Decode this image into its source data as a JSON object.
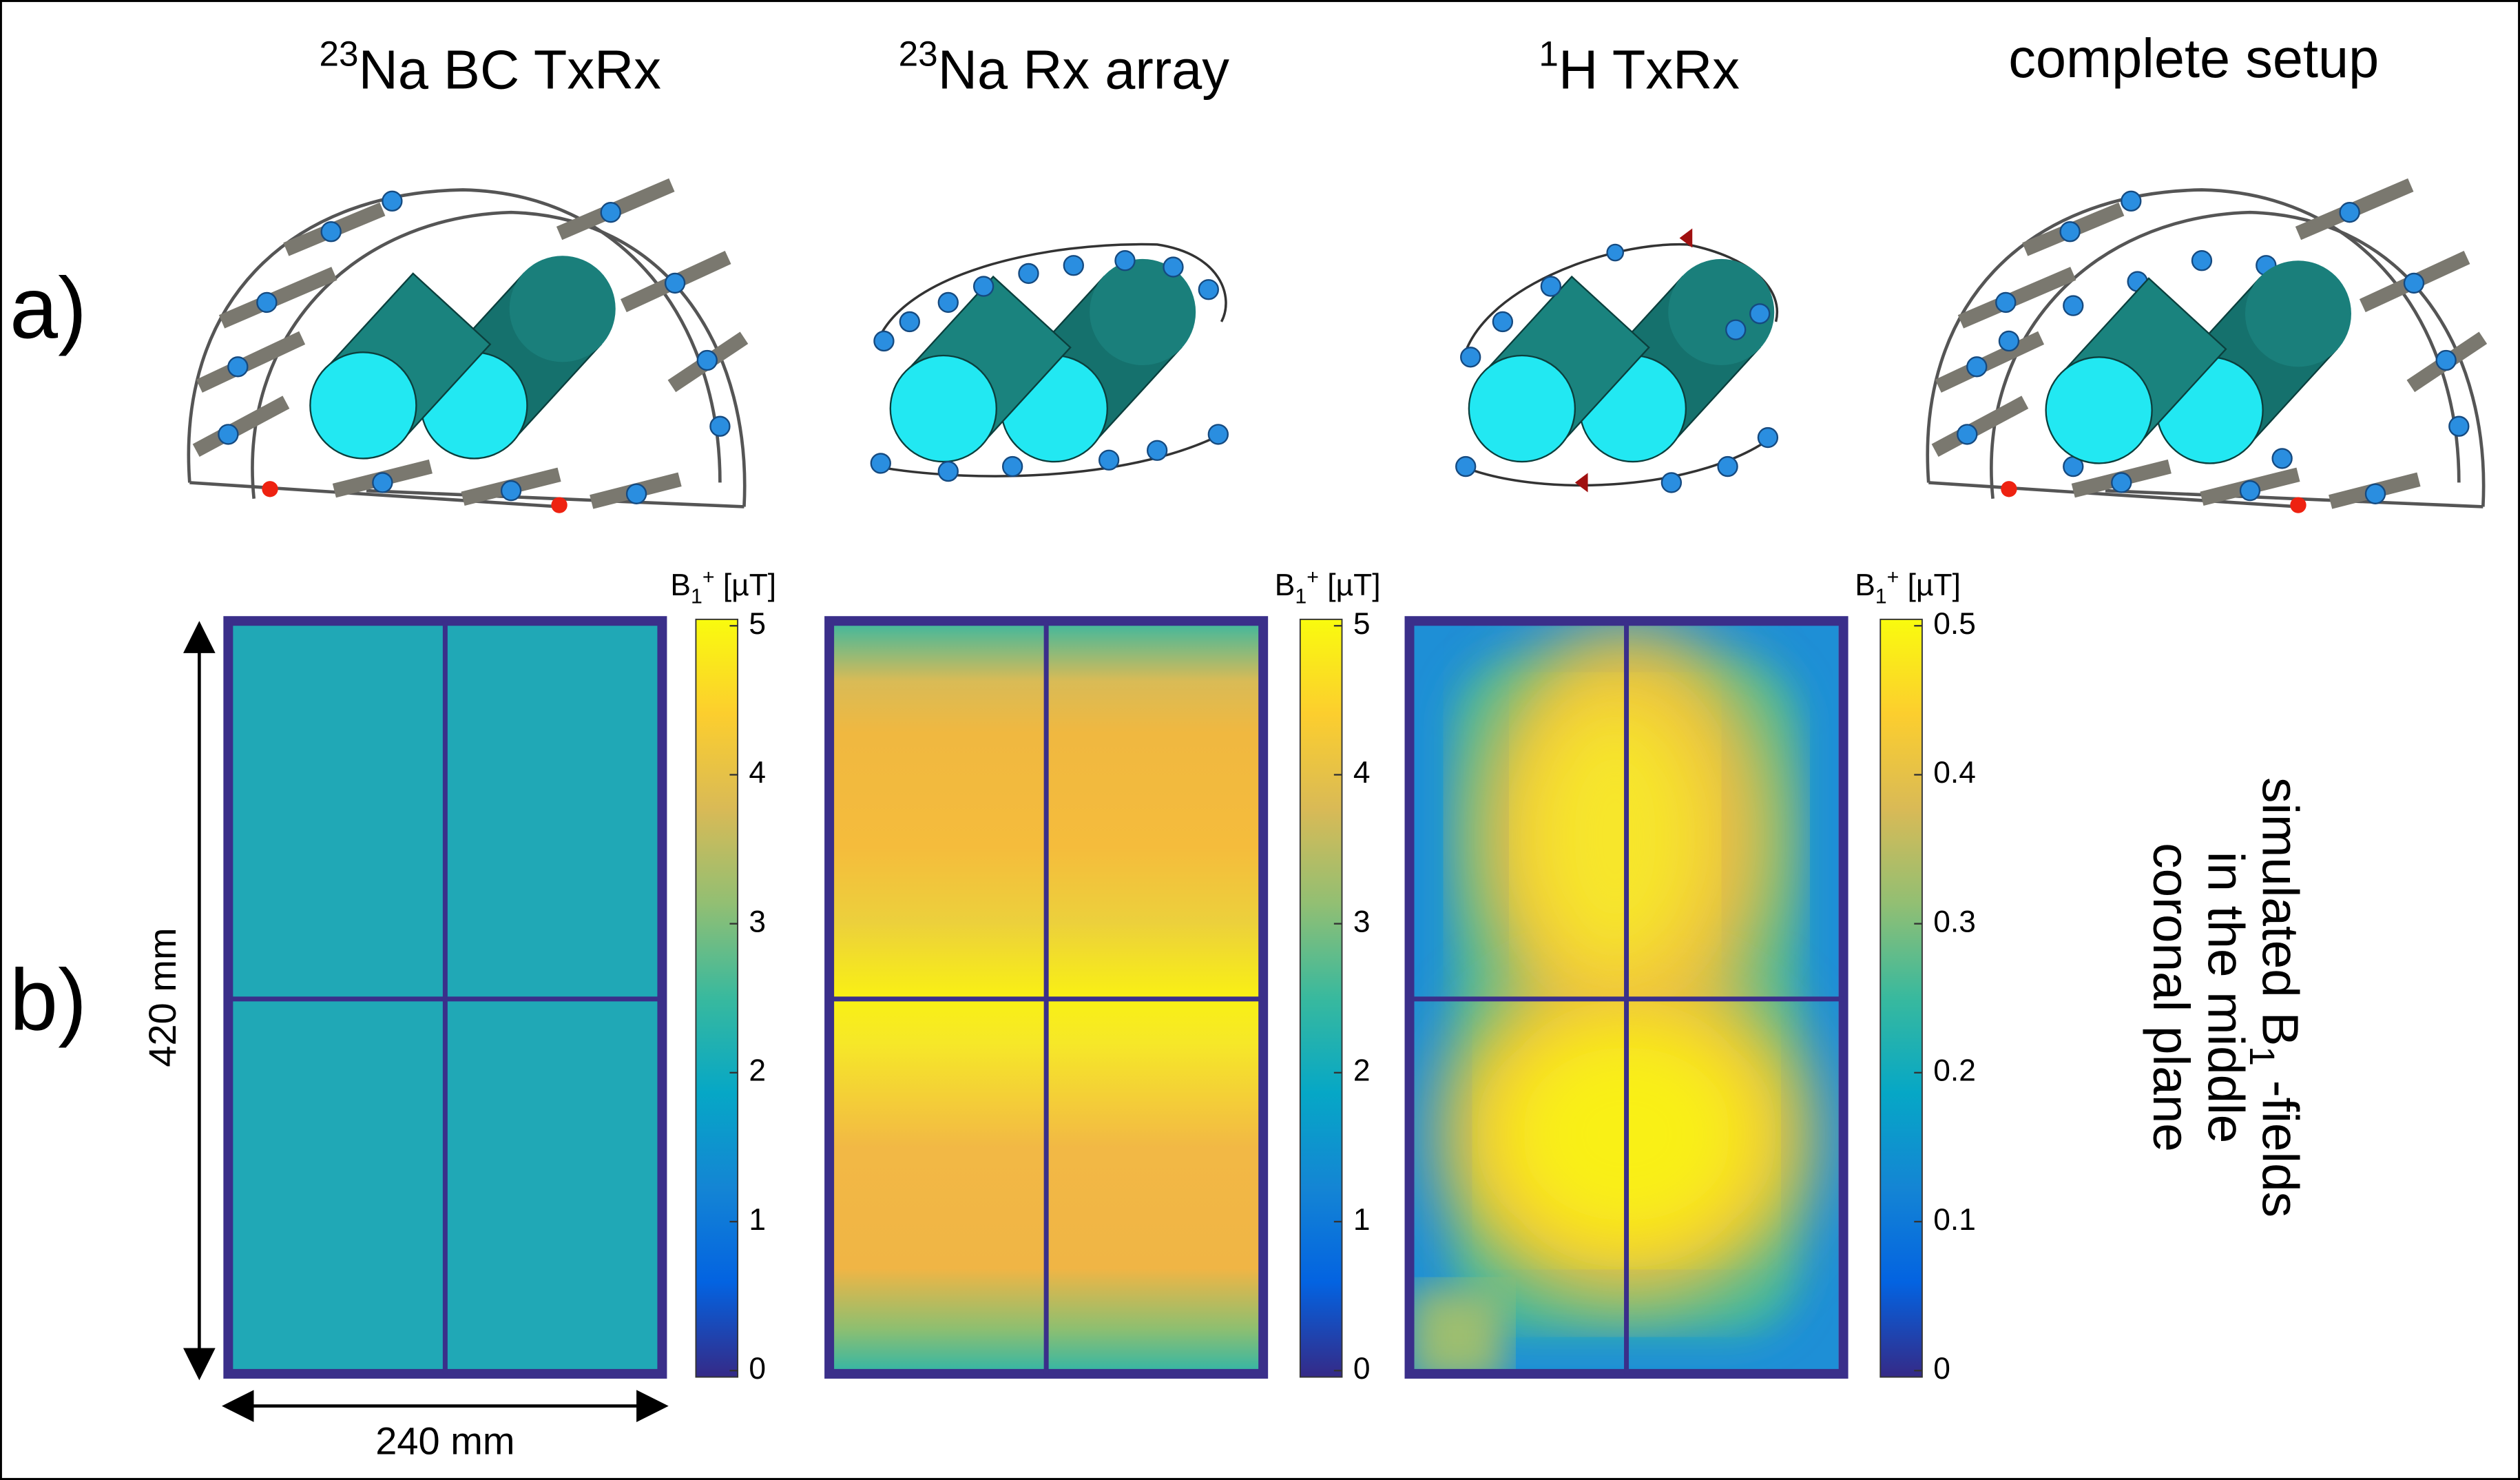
{
  "panel_labels": [
    "a)",
    "b)"
  ],
  "columns": [
    {
      "title_sup": "23",
      "title": "Na BC TxRx"
    },
    {
      "title_sup": "23",
      "title": "Na Rx array"
    },
    {
      "title_sup": "1",
      "title": "H TxRx"
    },
    {
      "title": "complete setup"
    }
  ],
  "maps": [
    {
      "colorbar_label": {
        "symbol": "B",
        "sub": "1",
        "sup": "+",
        "unit": " [µT]"
      },
      "clim": [
        0,
        5
      ],
      "ticks": [
        0,
        1,
        2,
        3,
        4,
        5
      ]
    },
    {
      "colorbar_label": {
        "symbol": "B",
        "sub": "1",
        "sup": "+",
        "unit": " [µT]"
      },
      "clim": [
        0,
        5
      ],
      "ticks": [
        0,
        1,
        2,
        3,
        4,
        5
      ]
    },
    {
      "colorbar_label": {
        "symbol": "B",
        "sub": "1",
        "sup": "+",
        "unit": " [µT]"
      },
      "clim": [
        0,
        0.5
      ],
      "ticks": [
        0,
        0.1,
        0.2,
        0.3,
        0.4,
        0.5
      ]
    }
  ],
  "dimensions": {
    "height": "420 mm",
    "width": "240 mm"
  },
  "side_note": {
    "line1_pre": "simulated B",
    "line1_sub": "1",
    "line1_post": " -fields",
    "line2": "in the middle",
    "line3": "coronal plane"
  }
}
